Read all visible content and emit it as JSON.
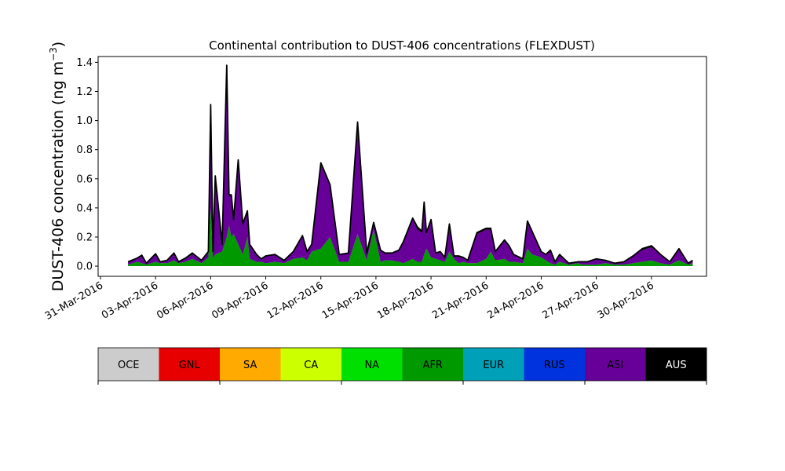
{
  "chart_data": {
    "type": "area",
    "title": "Continental contribution to DUST-406 concentrations (FLEXDUST)",
    "ylabel": "DUST-406 concentration (ng m",
    "ylabel_exponent": "−3",
    "ylabel_close": ")",
    "xlabel": "",
    "ylim": [
      -0.07,
      1.44
    ],
    "xlim": [
      "2016-03-31",
      "2016-05-03"
    ],
    "y_ticks": [
      0.0,
      0.2,
      0.4,
      0.6,
      0.8,
      1.0,
      1.2,
      1.4
    ],
    "y_tick_labels": [
      "0.0",
      "0.2",
      "0.4",
      "0.6",
      "0.8",
      "1.0",
      "1.2",
      "1.4"
    ],
    "x_ticks": [
      "2016-03-31",
      "2016-04-03",
      "2016-04-06",
      "2016-04-09",
      "2016-04-12",
      "2016-04-15",
      "2016-04-18",
      "2016-04-21",
      "2016-04-24",
      "2016-04-27",
      "2016-04-30"
    ],
    "x_tick_labels": [
      "31-Mar-2016",
      "03-Apr-2016",
      "06-Apr-2016",
      "09-Apr-2016",
      "12-Apr-2016",
      "15-Apr-2016",
      "18-Apr-2016",
      "21-Apr-2016",
      "24-Apr-2016",
      "27-Apr-2016",
      "30-Apr-2016"
    ],
    "grid": false,
    "legend_position": "bottom",
    "legend": [
      {
        "name": "OCE",
        "color": "#cccccc",
        "text_color": "#000000"
      },
      {
        "name": "GNL",
        "color": "#e60000",
        "text_color": "#000000"
      },
      {
        "name": "SA",
        "color": "#ffaa00",
        "text_color": "#000000"
      },
      {
        "name": "CA",
        "color": "#ccff00",
        "text_color": "#000000"
      },
      {
        "name": "NA",
        "color": "#00e000",
        "text_color": "#000000"
      },
      {
        "name": "AFR",
        "color": "#009900",
        "text_color": "#000000"
      },
      {
        "name": "EUR",
        "color": "#00a0b8",
        "text_color": "#000000"
      },
      {
        "name": "RUS",
        "color": "#0033dd",
        "text_color": "#000000"
      },
      {
        "name": "ASI",
        "color": "#660099",
        "text_color": "#000000"
      },
      {
        "name": "AUS",
        "color": "#000000",
        "text_color": "#ffffff"
      }
    ],
    "x": [
      "2016-04-01T12:00",
      "2016-04-02T00:00",
      "2016-04-02T06:00",
      "2016-04-02T12:00",
      "2016-04-03T00:00",
      "2016-04-03T06:00",
      "2016-04-03T15:00",
      "2016-04-04T00:00",
      "2016-04-04T06:00",
      "2016-04-04T15:00",
      "2016-04-05T00:00",
      "2016-04-05T12:00",
      "2016-04-05T21:00",
      "2016-04-06T00:00",
      "2016-04-06T03:00",
      "2016-04-06T06:00",
      "2016-04-06T15:00",
      "2016-04-06T21:00",
      "2016-04-07T00:00",
      "2016-04-07T03:00",
      "2016-04-07T06:00",
      "2016-04-07T12:00",
      "2016-04-07T18:00",
      "2016-04-08T00:00",
      "2016-04-08T03:00",
      "2016-04-08T12:00",
      "2016-04-08T18:00",
      "2016-04-09T00:00",
      "2016-04-09T12:00",
      "2016-04-10T00:00",
      "2016-04-10T12:00",
      "2016-04-11T00:00",
      "2016-04-11T06:00",
      "2016-04-11T12:00",
      "2016-04-12T00:00",
      "2016-04-12T12:00",
      "2016-04-13T00:00",
      "2016-04-13T12:00",
      "2016-04-14T00:00",
      "2016-04-14T12:00",
      "2016-04-14T21:00",
      "2016-04-15T06:00",
      "2016-04-15T12:00",
      "2016-04-15T21:00",
      "2016-04-16T06:00",
      "2016-04-16T12:00",
      "2016-04-17T00:00",
      "2016-04-17T06:00",
      "2016-04-17T12:00",
      "2016-04-17T15:00",
      "2016-04-17T18:00",
      "2016-04-18T00:00",
      "2016-04-18T06:00",
      "2016-04-18T12:00",
      "2016-04-18T18:00",
      "2016-04-19T00:00",
      "2016-04-19T06:00",
      "2016-04-19T12:00",
      "2016-04-19T18:00",
      "2016-04-20T00:00",
      "2016-04-20T12:00",
      "2016-04-21T00:00",
      "2016-04-21T06:00",
      "2016-04-21T12:00",
      "2016-04-22T00:00",
      "2016-04-22T06:00",
      "2016-04-22T12:00",
      "2016-04-23T00:00",
      "2016-04-23T06:00",
      "2016-04-23T12:00",
      "2016-04-24T00:00",
      "2016-04-24T06:00",
      "2016-04-24T12:00",
      "2016-04-24T18:00",
      "2016-04-25T00:00",
      "2016-04-25T12:00",
      "2016-04-26T00:00",
      "2016-04-26T06:00",
      "2016-04-26T12:00",
      "2016-04-27T00:00",
      "2016-04-27T12:00",
      "2016-04-28T00:00",
      "2016-04-28T12:00",
      "2016-04-29T00:00",
      "2016-04-29T12:00",
      "2016-04-30T00:00",
      "2016-04-30T12:00",
      "2016-05-01T00:00",
      "2016-05-01T12:00",
      "2016-05-02T00:00",
      "2016-05-02T06:00"
    ],
    "series": [
      {
        "name": "AFR",
        "values": [
          0.01,
          0.03,
          0.02,
          0.01,
          0.03,
          0.02,
          0.02,
          0.04,
          0.02,
          0.03,
          0.05,
          0.02,
          0.06,
          0.4,
          0.05,
          0.08,
          0.1,
          0.2,
          0.28,
          0.2,
          0.22,
          0.15,
          0.08,
          0.2,
          0.05,
          0.03,
          0.03,
          0.02,
          0.03,
          0.02,
          0.05,
          0.06,
          0.04,
          0.1,
          0.12,
          0.2,
          0.03,
          0.03,
          0.22,
          0.04,
          0.25,
          0.03,
          0.04,
          0.04,
          0.03,
          0.02,
          0.05,
          0.03,
          0.03,
          0.08,
          0.12,
          0.06,
          0.05,
          0.04,
          0.03,
          0.1,
          0.05,
          0.02,
          0.03,
          0.02,
          0.02,
          0.05,
          0.1,
          0.04,
          0.05,
          0.03,
          0.03,
          0.02,
          0.12,
          0.08,
          0.06,
          0.04,
          0.02,
          0.01,
          0.03,
          0.01,
          0.02,
          0.01,
          0.01,
          0.01,
          0.02,
          0.01,
          0.01,
          0.02,
          0.03,
          0.04,
          0.02,
          0.01,
          0.04,
          0.01,
          0.02
        ]
      },
      {
        "name": "ASI",
        "values": [
          0.02,
          0.02,
          0.05,
          0.01,
          0.05,
          0.01,
          0.02,
          0.04,
          0.01,
          0.02,
          0.03,
          0.02,
          0.03,
          0.7,
          0.05,
          0.53,
          0.05,
          1.16,
          0.2,
          0.28,
          0.1,
          0.57,
          0.2,
          0.17,
          0.1,
          0.05,
          0.02,
          0.05,
          0.05,
          0.02,
          0.05,
          0.14,
          0.06,
          0.05,
          0.58,
          0.35,
          0.05,
          0.06,
          0.76,
          0.05,
          0.05,
          0.08,
          0.05,
          0.05,
          0.08,
          0.15,
          0.27,
          0.22,
          0.2,
          0.35,
          0.1,
          0.25,
          0.04,
          0.06,
          0.03,
          0.17,
          0.02,
          0.05,
          0.03,
          0.02,
          0.2,
          0.2,
          0.15,
          0.06,
          0.12,
          0.1,
          0.05,
          0.03,
          0.18,
          0.15,
          0.04,
          0.04,
          0.09,
          0.02,
          0.05,
          0.01,
          0.01,
          0.02,
          0.02,
          0.04,
          0.02,
          0.01,
          0.02,
          0.05,
          0.08,
          0.09,
          0.06,
          0.02,
          0.08,
          0.01,
          0.02
        ]
      },
      {
        "name": "AUS",
        "values": [
          0.0,
          0.005,
          0.005,
          0.0,
          0.005,
          0.0,
          0.0,
          0.01,
          0.0,
          0.005,
          0.01,
          0.0,
          0.01,
          0.01,
          0.0,
          0.01,
          0.0,
          0.02,
          0.01,
          0.01,
          0.0,
          0.01,
          0.01,
          0.01,
          0.0,
          0.0,
          0.0,
          0.0,
          0.0,
          0.0,
          0.0,
          0.01,
          0.0,
          0.0,
          0.01,
          0.01,
          0.0,
          0.0,
          0.01,
          0.0,
          0.0,
          0.0,
          0.0,
          0.0,
          0.0,
          0.0,
          0.01,
          0.02,
          0.01,
          0.01,
          0.01,
          0.01,
          0.0,
          0.0,
          0.0,
          0.02,
          0.0,
          0.0,
          0.0,
          0.0,
          0.01,
          0.01,
          0.01,
          0.0,
          0.01,
          0.01,
          0.0,
          0.0,
          0.01,
          0.01,
          0.0,
          0.0,
          0.0,
          0.0,
          0.0,
          0.0,
          0.0,
          0.0,
          0.0,
          0.0,
          0.0,
          0.0,
          0.0,
          0.0,
          0.01,
          0.01,
          0.0,
          0.0,
          0.0,
          0.0,
          0.0
        ]
      }
    ]
  }
}
